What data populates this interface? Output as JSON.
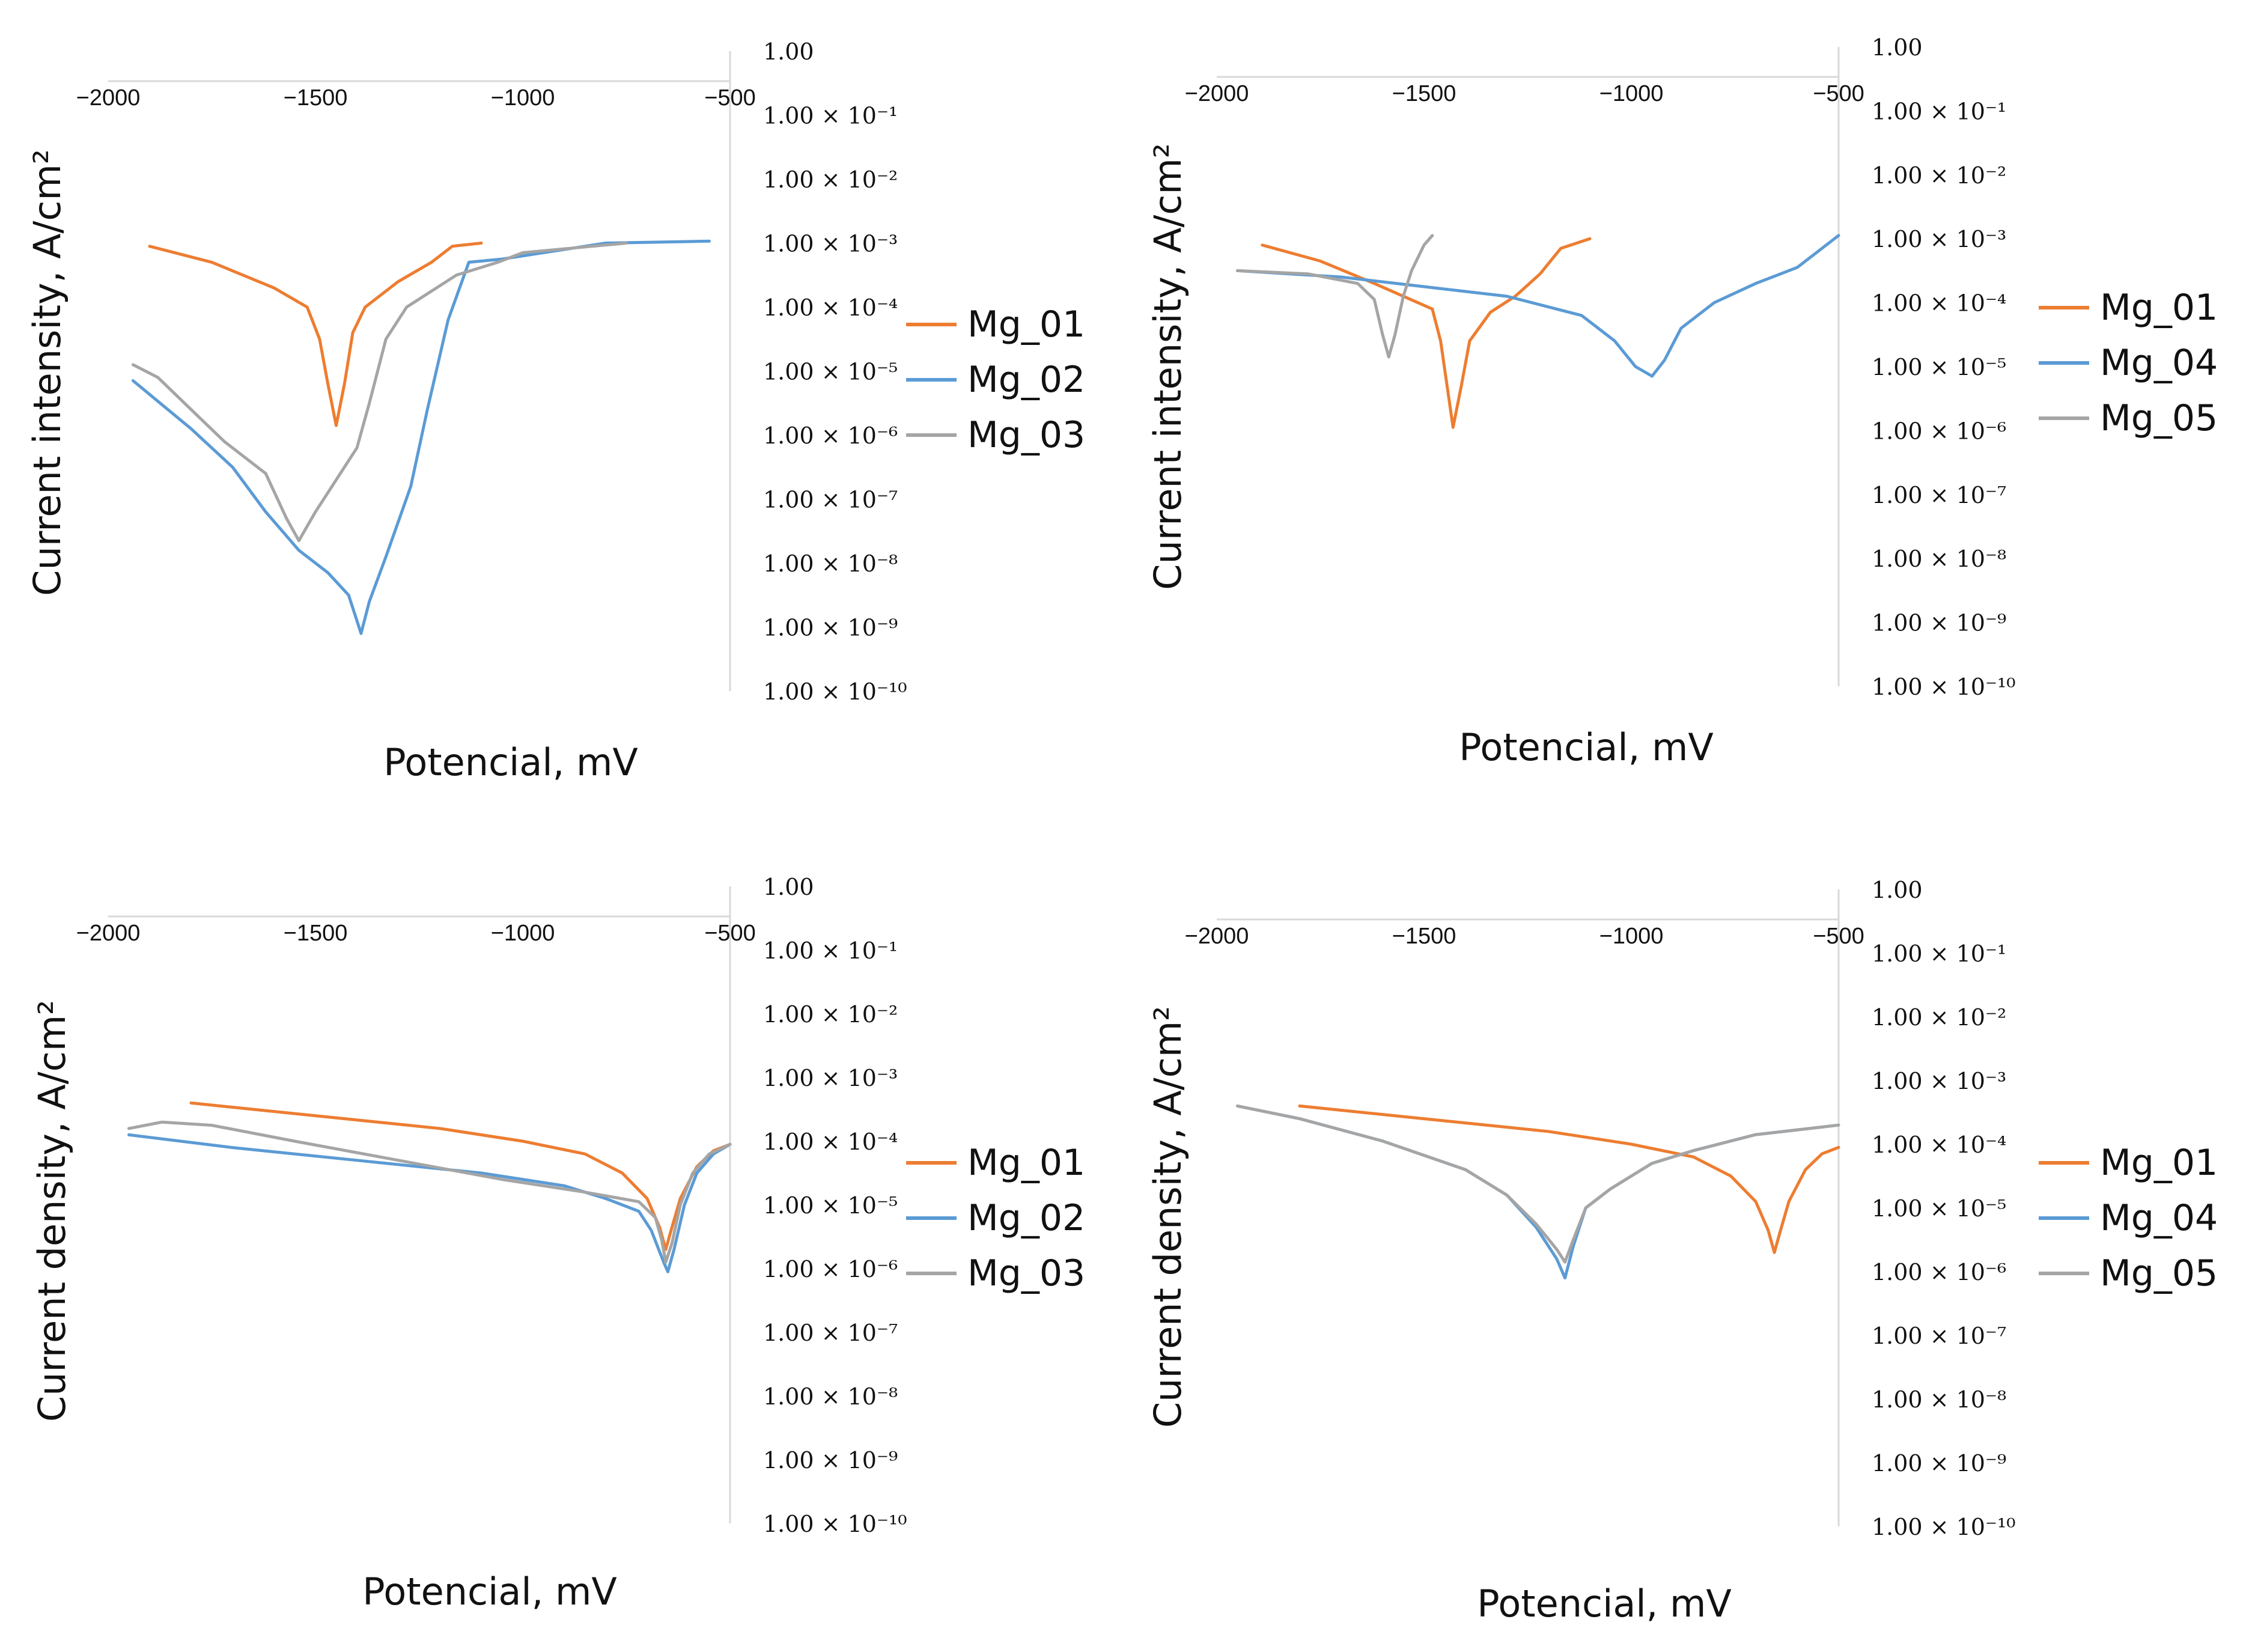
{
  "chart_data": [
    {
      "type": "line",
      "xlabel": "Potencial, mV",
      "ylabel": "Current intensity, A/cm²",
      "x_ticks": [
        "−2000",
        "−1500",
        "−1000",
        "−500"
      ],
      "y_ticks": [
        "1.00",
        "1.00 × 10⁻¹",
        "1.00 × 10⁻²",
        "1.00 × 10⁻³",
        "1.00 × 10⁻⁴",
        "1.00 × 10⁻⁵",
        "1.00 × 10⁻⁶",
        "1.00 × 10⁻⁷",
        "1.00 × 10⁻⁸",
        "1.00 × 10⁻⁹",
        "1.00 × 10⁻¹⁰"
      ],
      "xlim": [
        -2000,
        -500
      ],
      "ylim_log10": [
        -10,
        0
      ],
      "series": [
        {
          "name": "Mg_01",
          "color": "#ED7D31",
          "points": [
            [
              -1900,
              -3.05
            ],
            [
              -1750,
              -3.3
            ],
            [
              -1600,
              -3.7
            ],
            [
              -1520,
              -4.0
            ],
            [
              -1490,
              -4.5
            ],
            [
              -1470,
              -5.2
            ],
            [
              -1450,
              -5.85
            ],
            [
              -1430,
              -5.2
            ],
            [
              -1410,
              -4.4
            ],
            [
              -1380,
              -4.0
            ],
            [
              -1300,
              -3.6
            ],
            [
              -1220,
              -3.3
            ],
            [
              -1170,
              -3.05
            ],
            [
              -1100,
              -3.0
            ]
          ]
        },
        {
          "name": "Mg_02",
          "color": "#5B9BD5",
          "points": [
            [
              -1940,
              -5.15
            ],
            [
              -1800,
              -5.9
            ],
            [
              -1700,
              -6.5
            ],
            [
              -1620,
              -7.2
            ],
            [
              -1540,
              -7.8
            ],
            [
              -1470,
              -8.15
            ],
            [
              -1420,
              -8.5
            ],
            [
              -1390,
              -9.1
            ],
            [
              -1370,
              -8.6
            ],
            [
              -1330,
              -7.9
            ],
            [
              -1270,
              -6.8
            ],
            [
              -1230,
              -5.6
            ],
            [
              -1180,
              -4.2
            ],
            [
              -1130,
              -3.3
            ],
            [
              -1050,
              -3.25
            ],
            [
              -800,
              -3.0
            ],
            [
              -550,
              -2.97
            ]
          ]
        },
        {
          "name": "Mg_03",
          "color": "#A5A5A5",
          "points": [
            [
              -1940,
              -4.9
            ],
            [
              -1880,
              -5.1
            ],
            [
              -1800,
              -5.6
            ],
            [
              -1720,
              -6.1
            ],
            [
              -1620,
              -6.6
            ],
            [
              -1570,
              -7.3
            ],
            [
              -1540,
              -7.65
            ],
            [
              -1500,
              -7.2
            ],
            [
              -1440,
              -6.6
            ],
            [
              -1400,
              -6.2
            ],
            [
              -1370,
              -5.5
            ],
            [
              -1330,
              -4.5
            ],
            [
              -1280,
              -4.0
            ],
            [
              -1160,
              -3.5
            ],
            [
              -1060,
              -3.3
            ],
            [
              -1000,
              -3.15
            ],
            [
              -750,
              -3.0
            ]
          ]
        }
      ]
    },
    {
      "type": "line",
      "xlabel": "Potencial, mV",
      "ylabel": "Current intensity, A/cm²",
      "x_ticks": [
        "−2000",
        "−1500",
        "−1000",
        "−500"
      ],
      "y_ticks": [
        "1.00",
        "1.00 × 10⁻¹",
        "1.00 × 10⁻²",
        "1.00 × 10⁻³",
        "1.00 × 10⁻⁴",
        "1.00 × 10⁻⁵",
        "1.00 × 10⁻⁶",
        "1.00 × 10⁻⁷",
        "1.00 × 10⁻⁸",
        "1.00 × 10⁻⁹",
        "1.00 × 10⁻¹⁰"
      ],
      "xlim": [
        -2000,
        -500
      ],
      "ylim_log10": [
        -10,
        0
      ],
      "series": [
        {
          "name": "Mg_01",
          "color": "#ED7D31",
          "points": [
            [
              -1890,
              -3.1
            ],
            [
              -1750,
              -3.35
            ],
            [
              -1620,
              -3.7
            ],
            [
              -1480,
              -4.1
            ],
            [
              -1460,
              -4.6
            ],
            [
              -1440,
              -5.5
            ],
            [
              -1430,
              -5.95
            ],
            [
              -1410,
              -5.3
            ],
            [
              -1390,
              -4.6
            ],
            [
              -1340,
              -4.15
            ],
            [
              -1280,
              -3.9
            ],
            [
              -1220,
              -3.55
            ],
            [
              -1170,
              -3.15
            ],
            [
              -1100,
              -3.0
            ]
          ]
        },
        {
          "name": "Mg_04",
          "color": "#5B9BD5",
          "points": [
            [
              -1950,
              -3.5
            ],
            [
              -1700,
              -3.6
            ],
            [
              -1500,
              -3.75
            ],
            [
              -1300,
              -3.9
            ],
            [
              -1120,
              -4.2
            ],
            [
              -1040,
              -4.6
            ],
            [
              -990,
              -5.0
            ],
            [
              -950,
              -5.15
            ],
            [
              -920,
              -4.9
            ],
            [
              -880,
              -4.4
            ],
            [
              -800,
              -4.0
            ],
            [
              -700,
              -3.7
            ],
            [
              -600,
              -3.45
            ],
            [
              -500,
              -2.95
            ]
          ]
        },
        {
          "name": "Mg_05",
          "color": "#A5A5A5",
          "points": [
            [
              -1950,
              -3.5
            ],
            [
              -1780,
              -3.55
            ],
            [
              -1660,
              -3.7
            ],
            [
              -1620,
              -3.95
            ],
            [
              -1600,
              -4.5
            ],
            [
              -1585,
              -4.85
            ],
            [
              -1570,
              -4.5
            ],
            [
              -1550,
              -3.9
            ],
            [
              -1530,
              -3.5
            ],
            [
              -1500,
              -3.1
            ],
            [
              -1480,
              -2.95
            ]
          ]
        }
      ]
    },
    {
      "type": "line",
      "xlabel": "Potencial, mV",
      "ylabel": "Current density, A/cm²",
      "x_ticks": [
        "−2000",
        "−1500",
        "−1000",
        "−500"
      ],
      "y_ticks": [
        "1.00",
        "1.00 × 10⁻¹",
        "1.00 × 10⁻²",
        "1.00 × 10⁻³",
        "1.00 × 10⁻⁴",
        "1.00 × 10⁻⁵",
        "1.00 × 10⁻⁶",
        "1.00 × 10⁻⁷",
        "1.00 × 10⁻⁸",
        "1.00 × 10⁻⁹",
        "1.00 × 10⁻¹⁰"
      ],
      "xlim": [
        -2000,
        -500
      ],
      "ylim_log10": [
        -10,
        0
      ],
      "series": [
        {
          "name": "Mg_01",
          "color": "#ED7D31",
          "points": [
            [
              -1800,
              -3.4
            ],
            [
              -1500,
              -3.6
            ],
            [
              -1200,
              -3.8
            ],
            [
              -1000,
              -4.0
            ],
            [
              -850,
              -4.2
            ],
            [
              -760,
              -4.5
            ],
            [
              -700,
              -4.9
            ],
            [
              -670,
              -5.35
            ],
            [
              -655,
              -5.7
            ],
            [
              -640,
              -5.35
            ],
            [
              -620,
              -4.9
            ],
            [
              -580,
              -4.4
            ],
            [
              -540,
              -4.15
            ],
            [
              -500,
              -4.05
            ]
          ]
        },
        {
          "name": "Mg_02",
          "color": "#5B9BD5",
          "points": [
            [
              -1950,
              -3.9
            ],
            [
              -1700,
              -4.1
            ],
            [
              -1400,
              -4.3
            ],
            [
              -1100,
              -4.5
            ],
            [
              -900,
              -4.7
            ],
            [
              -800,
              -4.9
            ],
            [
              -720,
              -5.1
            ],
            [
              -690,
              -5.4
            ],
            [
              -660,
              -5.9
            ],
            [
              -650,
              -6.05
            ],
            [
              -635,
              -5.7
            ],
            [
              -610,
              -5.0
            ],
            [
              -580,
              -4.5
            ],
            [
              -540,
              -4.2
            ],
            [
              -500,
              -4.05
            ]
          ]
        },
        {
          "name": "Mg_03",
          "color": "#A5A5A5",
          "points": [
            [
              -1950,
              -3.8
            ],
            [
              -1870,
              -3.7
            ],
            [
              -1750,
              -3.75
            ],
            [
              -1550,
              -4.0
            ],
            [
              -1300,
              -4.3
            ],
            [
              -1050,
              -4.6
            ],
            [
              -850,
              -4.8
            ],
            [
              -720,
              -4.95
            ],
            [
              -680,
              -5.2
            ],
            [
              -665,
              -5.55
            ],
            [
              -655,
              -5.9
            ],
            [
              -640,
              -5.6
            ],
            [
              -620,
              -5.0
            ],
            [
              -590,
              -4.5
            ],
            [
              -550,
              -4.2
            ],
            [
              -500,
              -4.05
            ]
          ]
        }
      ]
    },
    {
      "type": "line",
      "xlabel": "Potencial, mV",
      "ylabel": "Current density, A/cm²",
      "x_ticks": [
        "−2000",
        "−1500",
        "−1000",
        "−500"
      ],
      "y_ticks": [
        "1.00",
        "1.00 × 10⁻¹",
        "1.00 × 10⁻²",
        "1.00 × 10⁻³",
        "1.00 × 10⁻⁴",
        "1.00 × 10⁻⁵",
        "1.00 × 10⁻⁶",
        "1.00 × 10⁻⁷",
        "1.00 × 10⁻⁸",
        "1.00 × 10⁻⁹",
        "1.00 × 10⁻¹⁰"
      ],
      "xlim": [
        -2000,
        -500
      ],
      "ylim_log10": [
        -10,
        0
      ],
      "series": [
        {
          "name": "Mg_01",
          "color": "#ED7D31",
          "points": [
            [
              -1800,
              -3.4
            ],
            [
              -1500,
              -3.6
            ],
            [
              -1200,
              -3.8
            ],
            [
              -1000,
              -4.0
            ],
            [
              -850,
              -4.2
            ],
            [
              -760,
              -4.5
            ],
            [
              -700,
              -4.9
            ],
            [
              -670,
              -5.35
            ],
            [
              -655,
              -5.7
            ],
            [
              -640,
              -5.35
            ],
            [
              -620,
              -4.9
            ],
            [
              -580,
              -4.4
            ],
            [
              -540,
              -4.15
            ],
            [
              -500,
              -4.05
            ]
          ]
        },
        {
          "name": "Mg_04",
          "color": "#5B9BD5",
          "points": [
            [
              -1950,
              -3.4
            ],
            [
              -1800,
              -3.6
            ],
            [
              -1600,
              -3.95
            ],
            [
              -1400,
              -4.4
            ],
            [
              -1300,
              -4.8
            ],
            [
              -1230,
              -5.3
            ],
            [
              -1180,
              -5.8
            ],
            [
              -1160,
              -6.1
            ],
            [
              -1140,
              -5.6
            ],
            [
              -1110,
              -5.0
            ],
            [
              -1050,
              -4.7
            ],
            [
              -950,
              -4.3
            ],
            [
              -850,
              -4.1
            ],
            [
              -700,
              -3.85
            ],
            [
              -500,
              -3.7
            ]
          ]
        },
        {
          "name": "Mg_05",
          "color": "#A5A5A5",
          "points": [
            [
              -1950,
              -3.4
            ],
            [
              -1800,
              -3.6
            ],
            [
              -1600,
              -3.95
            ],
            [
              -1400,
              -4.4
            ],
            [
              -1300,
              -4.8
            ],
            [
              -1230,
              -5.25
            ],
            [
              -1180,
              -5.65
            ],
            [
              -1160,
              -5.85
            ],
            [
              -1140,
              -5.5
            ],
            [
              -1110,
              -5.0
            ],
            [
              -1050,
              -4.7
            ],
            [
              -950,
              -4.3
            ],
            [
              -850,
              -4.1
            ],
            [
              -700,
              -3.85
            ],
            [
              -500,
              -3.7
            ]
          ]
        }
      ]
    }
  ]
}
